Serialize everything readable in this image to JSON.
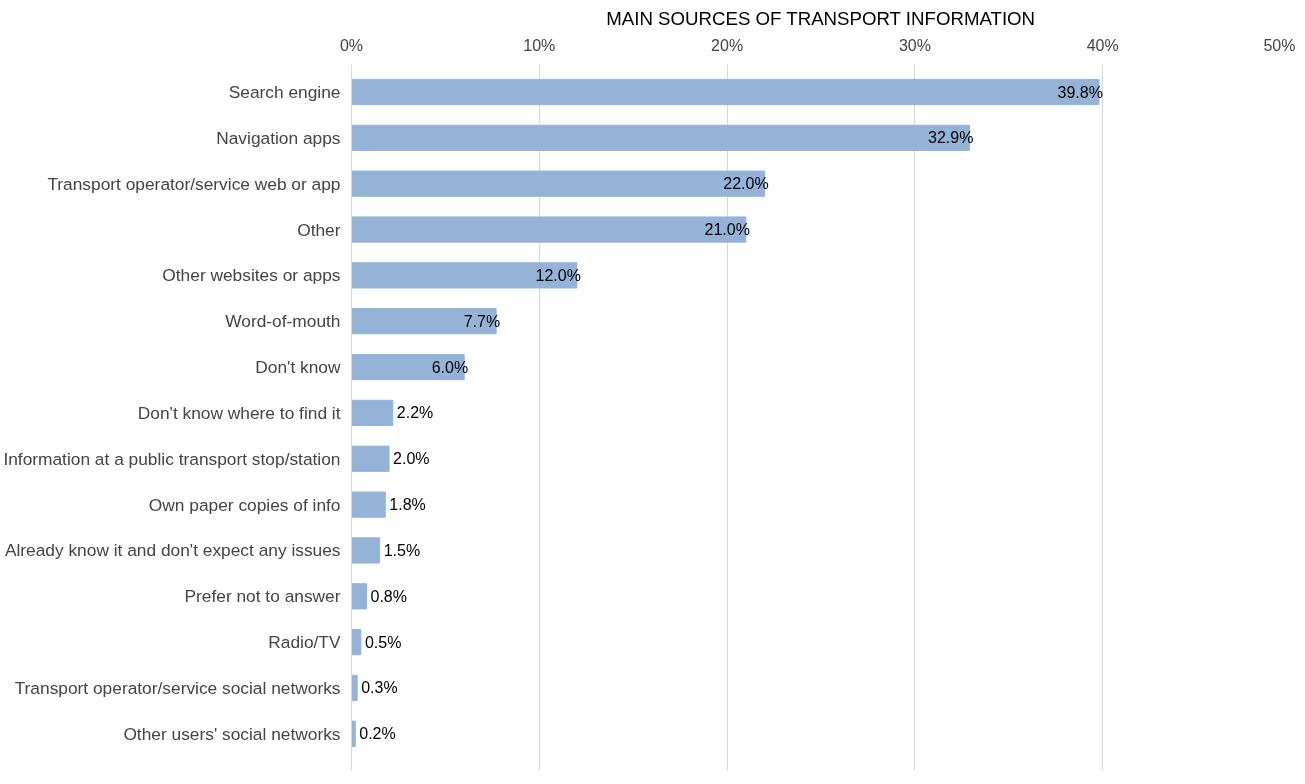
{
  "chart_data": {
    "type": "bar",
    "orientation": "horizontal",
    "title": "MAIN SOURCES OF TRANSPORT INFORMATION",
    "categories": [
      "Search engine",
      "Navigation apps",
      "Transport operator/service web or app",
      "Other",
      "Other websites or apps",
      "Word-of-mouth",
      "Don't know",
      "Don't know where to find it",
      "Information at a public transport stop/station",
      "Own paper copies of info",
      "Already know it and don't expect any issues",
      "Prefer not to answer",
      "Radio/TV",
      "Transport operator/service social networks",
      "Other users' social networks"
    ],
    "values": [
      39.8,
      32.9,
      22.0,
      21.0,
      12.0,
      7.7,
      6.0,
      2.2,
      2.0,
      1.8,
      1.5,
      0.8,
      0.5,
      0.3,
      0.2
    ],
    "value_labels": [
      "39.8%",
      "32.9%",
      "22.0%",
      "21.0%",
      "12.0%",
      "7.7%",
      "6.0%",
      "2.2%",
      "2.0%",
      "1.8%",
      "1.5%",
      "0.8%",
      "0.5%",
      "0.3%",
      "0.2%"
    ],
    "color": "#95b3d7",
    "xlim": [
      0,
      50
    ],
    "xticks": [
      {
        "value": 0,
        "label": "0%"
      },
      {
        "value": 10,
        "label": "10%"
      },
      {
        "value": 20,
        "label": "20%"
      },
      {
        "value": 30,
        "label": "30%"
      },
      {
        "value": 40,
        "label": "40%"
      },
      {
        "value": 50,
        "label": "50%"
      }
    ],
    "grid": "x"
  }
}
